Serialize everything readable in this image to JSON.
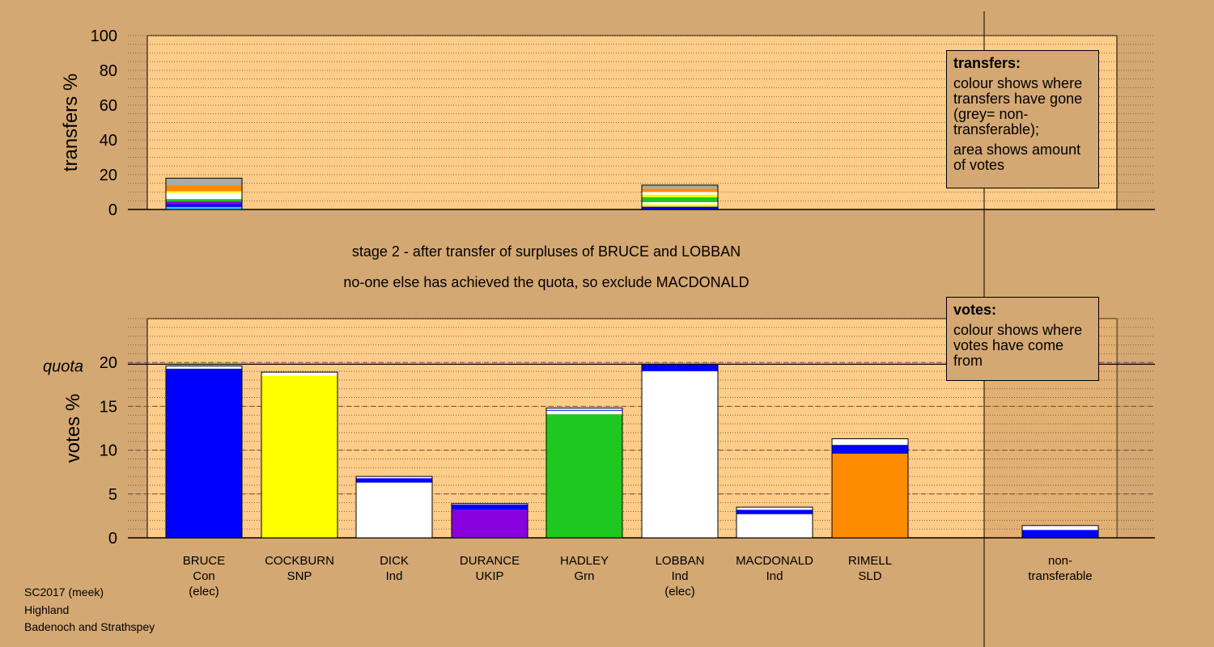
{
  "chart_data": {
    "type": "bar",
    "stage_line1": "stage 2 - after transfer of surpluses of BRUCE and LOBBAN",
    "stage_line2": "no-one else has achieved the quota, so exclude MACDONALD",
    "quota_label": "quota",
    "quota_value": 19.8,
    "columns": [
      {
        "name": "BRUCE",
        "party": "Con",
        "note": "(elec)"
      },
      {
        "name": "COCKBURN",
        "party": "SNP",
        "note": ""
      },
      {
        "name": "DICK",
        "party": "Ind",
        "note": ""
      },
      {
        "name": "DURANCE",
        "party": "UKIP",
        "note": ""
      },
      {
        "name": "HADLEY",
        "party": "Grn",
        "note": ""
      },
      {
        "name": "LOBBAN",
        "party": "Ind",
        "note": "(elec)"
      },
      {
        "name": "MACDONALD",
        "party": "Ind",
        "note": ""
      },
      {
        "name": "RIMELL",
        "party": "SLD",
        "note": ""
      },
      {
        "name": "non-",
        "party": "transferable",
        "note": ""
      }
    ],
    "transfers": {
      "ylabel": "transfers %",
      "ylim": [
        0,
        100
      ],
      "yticks": [
        0,
        20,
        40,
        60,
        80,
        100
      ],
      "bars": [
        {
          "column": 0,
          "segments": [
            {
              "color": "#1ac8ff",
              "value": 1.5
            },
            {
              "color": "#0000ff",
              "value": 1.5
            },
            {
              "color": "#8800dd",
              "value": 1.6
            },
            {
              "color": "#1ec81e",
              "value": 1.4
            },
            {
              "color": "#ffffff",
              "value": 3.6
            },
            {
              "color": "#ffff00",
              "value": 0.9
            },
            {
              "color": "#ff8c00",
              "value": 3.5
            },
            {
              "color": "#aaaaaa",
              "value": 4.0
            }
          ]
        },
        {
          "column": 5,
          "segments": [
            {
              "color": "#0000ff",
              "value": 1.6
            },
            {
              "color": "#ffff00",
              "value": 1.3
            },
            {
              "color": "#ffffff",
              "value": 1.3
            },
            {
              "color": "#1ec81e",
              "value": 2.8
            },
            {
              "color": "#ffff00",
              "value": 1.5
            },
            {
              "color": "#ffffff",
              "value": 1.5
            },
            {
              "color": "#ff8c00",
              "value": 2.0
            },
            {
              "color": "#aaaaaa",
              "value": 2.0
            }
          ]
        }
      ]
    },
    "votes": {
      "ylabel": "votes %",
      "ylim": [
        0,
        25
      ],
      "yticks": [
        0,
        5,
        10,
        15,
        20
      ],
      "bars": [
        {
          "column": 0,
          "segments": [
            {
              "color": "#0000ff",
              "value": 19.3
            },
            {
              "color": "#ffffff",
              "value": 0.3
            }
          ]
        },
        {
          "column": 1,
          "segments": [
            {
              "color": "#ffff00",
              "value": 18.5
            },
            {
              "color": "#ffffff",
              "value": 0.4
            }
          ]
        },
        {
          "column": 2,
          "segments": [
            {
              "color": "#ffffff",
              "value": 6.3
            },
            {
              "color": "#0000ff",
              "value": 0.5
            },
            {
              "color": "#ffffff",
              "value": 0.2
            }
          ]
        },
        {
          "column": 3,
          "segments": [
            {
              "color": "#8800dd",
              "value": 3.2
            },
            {
              "color": "#0000ff",
              "value": 0.6
            },
            {
              "color": "#ffffff",
              "value": 0.1
            }
          ]
        },
        {
          "column": 4,
          "segments": [
            {
              "color": "#1ec81e",
              "value": 14.1
            },
            {
              "color": "#ffffff",
              "value": 0.4
            },
            {
              "color": "#0000ff",
              "value": 0.1
            },
            {
              "color": "#ffffff",
              "value": 0.2
            }
          ]
        },
        {
          "column": 5,
          "segments": [
            {
              "color": "#ffffff",
              "value": 19.0
            },
            {
              "color": "#0000ff",
              "value": 0.8
            }
          ]
        },
        {
          "column": 6,
          "segments": [
            {
              "color": "#ffffff",
              "value": 2.7
            },
            {
              "color": "#0000ff",
              "value": 0.5
            },
            {
              "color": "#ffffff",
              "value": 0.3
            }
          ]
        },
        {
          "column": 7,
          "segments": [
            {
              "color": "#ff8c00",
              "value": 9.6
            },
            {
              "color": "#0000ff",
              "value": 1.0
            },
            {
              "color": "#ffffff",
              "value": 0.7
            }
          ]
        },
        {
          "column": 8,
          "segments": [
            {
              "color": "#0000ff",
              "value": 0.9
            },
            {
              "color": "#ffffff",
              "value": 0.5
            }
          ]
        }
      ]
    }
  },
  "legends": {
    "transfers": {
      "title": "transfers:",
      "para1": "colour shows where transfers have gone (grey= non-transferable);",
      "para2": "area shows amount of votes"
    },
    "votes": {
      "title": "votes:",
      "para1": "colour shows where votes have come from"
    }
  },
  "footer": {
    "line1": "SC2017 (meek)",
    "line2": "Highland",
    "line3": "Badenoch and Strathspey"
  },
  "colors": {
    "background": "#d4a872",
    "plot_area": "#ffcc8a",
    "non_transferable_area": "#c9995f"
  }
}
